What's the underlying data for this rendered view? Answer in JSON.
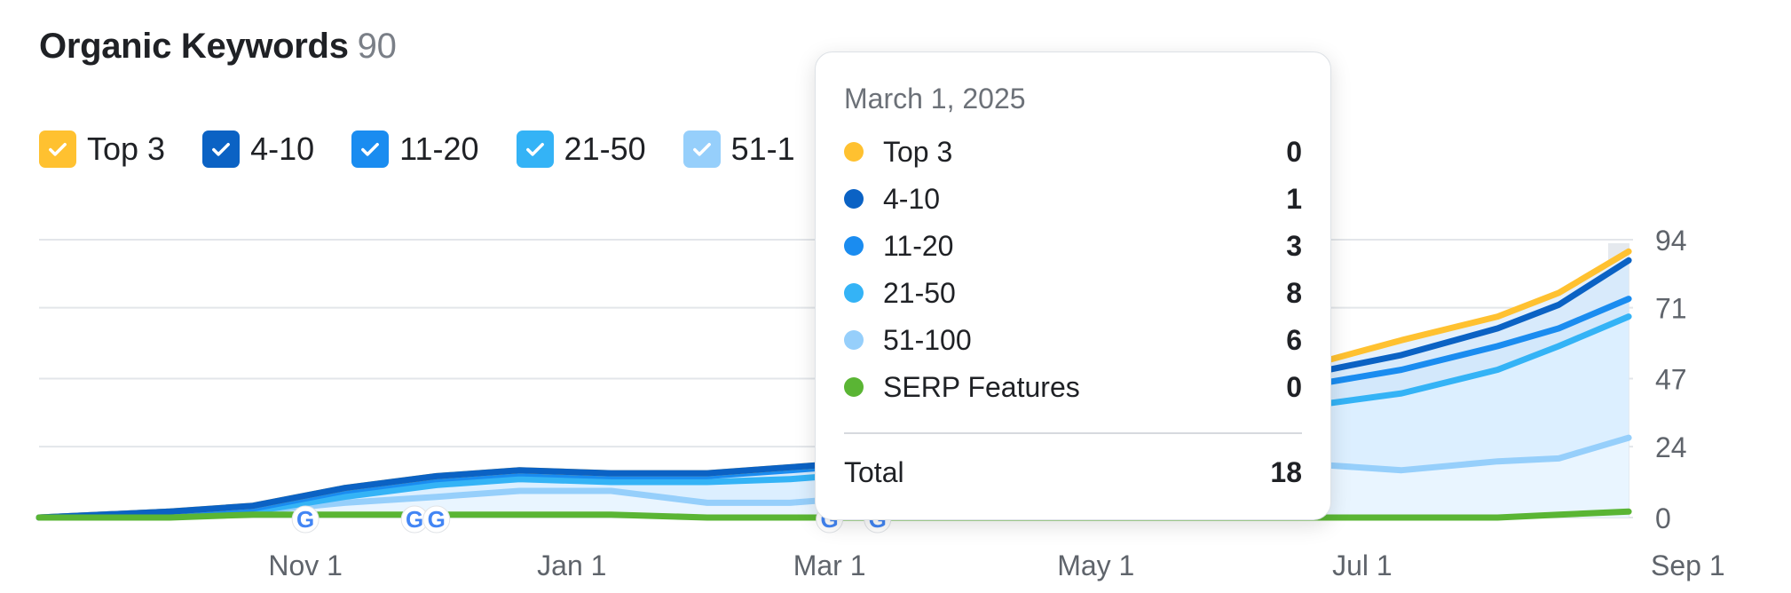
{
  "header": {
    "title": "Organic Keywords",
    "count": "90"
  },
  "legend": [
    {
      "label": "Top 3",
      "color": "#ffc130"
    },
    {
      "label": "4-10",
      "color": "#0b62c4"
    },
    {
      "label": "11-20",
      "color": "#1a8cf0"
    },
    {
      "label": "21-50",
      "color": "#34b3f6"
    },
    {
      "label": "51-1",
      "color": "#96cffb"
    }
  ],
  "tooltip": {
    "date": "March 1, 2025",
    "rows": [
      {
        "label": "Top 3",
        "value": "0",
        "color": "#ffc130"
      },
      {
        "label": "4-10",
        "value": "1",
        "color": "#0b62c4"
      },
      {
        "label": "11-20",
        "value": "3",
        "color": "#1a8cf0"
      },
      {
        "label": "21-50",
        "value": "8",
        "color": "#34b3f6"
      },
      {
        "label": "51-100",
        "value": "6",
        "color": "#96cffb"
      },
      {
        "label": "SERP Features",
        "value": "0",
        "color": "#5ab534"
      }
    ],
    "total_label": "Total",
    "total_value": "18"
  },
  "chart_data": {
    "type": "area",
    "title": "Organic Keywords",
    "x_ticks": [
      "Nov 1",
      "Jan 1",
      "Mar 1",
      "May 1",
      "Jul 1",
      "Sep 1"
    ],
    "y_ticks": [
      0,
      24,
      47,
      71,
      94
    ],
    "ylim": [
      0,
      94
    ],
    "xlim": [
      "2024-09-01",
      "2025-09-01"
    ],
    "grid": true,
    "legend_position": "top-left",
    "x": [
      "2024-09-01",
      "2024-10-01",
      "2024-10-20",
      "2024-11-10",
      "2024-12-01",
      "2024-12-20",
      "2025-01-10",
      "2025-02-01",
      "2025-02-20",
      "2025-03-01",
      "2025-04-01",
      "2025-05-01",
      "2025-06-01",
      "2025-06-20",
      "2025-07-10",
      "2025-08-01",
      "2025-08-15",
      "2025-08-31"
    ],
    "series": [
      {
        "name": "51-100",
        "color": "#96cffb",
        "values": [
          0,
          1,
          2,
          5,
          7,
          9,
          9,
          5,
          5,
          6,
          6,
          7,
          12,
          18,
          16,
          19,
          20,
          27
        ]
      },
      {
        "name": "21-50",
        "color": "#34b3f6",
        "values": [
          0,
          1,
          2,
          7,
          11,
          13,
          12,
          12,
          13,
          14,
          14,
          18,
          35,
          38,
          42,
          50,
          58,
          68
        ]
      },
      {
        "name": "11-20",
        "color": "#1a8cf0",
        "values": [
          0,
          2,
          3,
          9,
          13,
          15,
          14,
          14,
          16,
          17,
          17,
          22,
          42,
          45,
          50,
          58,
          64,
          74
        ]
      },
      {
        "name": "4-10",
        "color": "#0b62c4",
        "values": [
          0,
          2,
          4,
          10,
          14,
          16,
          15,
          15,
          17,
          18,
          18,
          24,
          46,
          49,
          55,
          64,
          72,
          87
        ]
      },
      {
        "name": "Top 3",
        "color": "#ffc130",
        "values": [
          0,
          2,
          4,
          10,
          14,
          16,
          15,
          15,
          17,
          18,
          18,
          25,
          49,
          52,
          60,
          68,
          76,
          90
        ]
      },
      {
        "name": "SERP Features",
        "color": "#5ab534",
        "values": [
          0,
          0,
          1,
          1,
          1,
          1,
          1,
          0,
          0,
          0,
          0,
          0,
          0,
          0,
          0,
          0,
          1,
          2
        ]
      }
    ],
    "annotations": [
      {
        "date": "2024-11-01",
        "label": "G"
      },
      {
        "date": "2024-11-26",
        "label": "G"
      },
      {
        "date": "2024-12-01",
        "label": "G"
      },
      {
        "date": "2025-03-01",
        "label": "G"
      },
      {
        "date": "2025-03-12",
        "label": "G"
      }
    ]
  }
}
